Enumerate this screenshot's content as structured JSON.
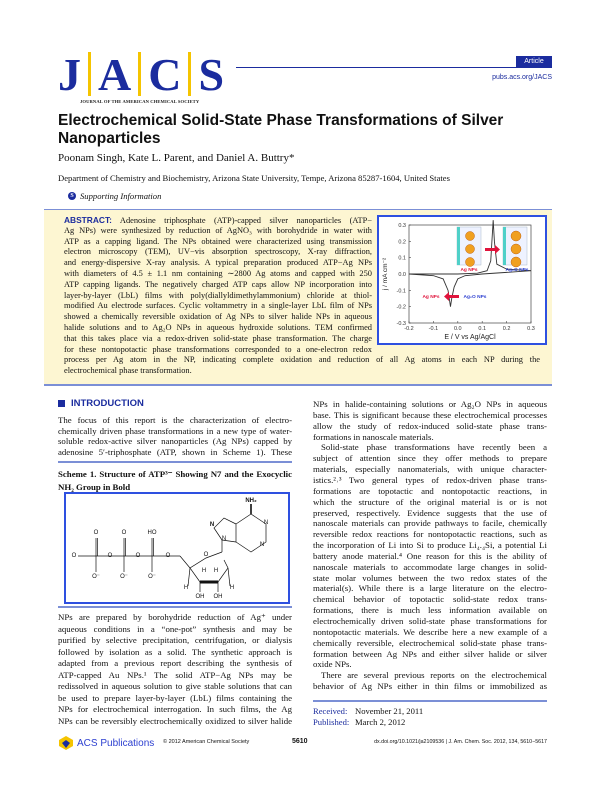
{
  "header": {
    "logo_letters": [
      "J",
      "A",
      "C",
      "S"
    ],
    "logo_subtitle": "JOURNAL OF THE AMERICAN CHEMICAL SOCIETY",
    "badge": "Article",
    "url": "pubs.acs.org/JACS",
    "colors": {
      "brand_blue": "#1b2c9e",
      "logo_yellow": "#f5c400",
      "abstract_bg": "#fdf6d2"
    }
  },
  "title": [
    "Electrochemical Solid-State Phase Transformations of Silver",
    "Nanoparticles"
  ],
  "authors": "Poonam Singh, Kate L. Parent, and Daniel A. Buttry*",
  "affiliation": "Department of Chemistry and Biochemistry, Arizona State University, Tempe, Arizona 85287-1604, United States",
  "supporting": {
    "icon": "S",
    "label": "Supporting Information"
  },
  "abstract": {
    "label": "ABSTRACT:",
    "lines": [
      " Adenosine triphosphate (ATP)-capped silver nanoparticles (ATP−",
      "Ag NPs) were synthesized by reduction of AgNO₃ with borohydride in water with",
      "ATP as a capping ligand. The NPs obtained were characterized using transmission",
      "electron microscopy (TEM), UV−vis absorption spectroscopy, X-ray diffraction,",
      "and energy-dispersive X-ray analysis. A typical preparation produced ATP−Ag NPs",
      "with diameters of 4.5 ± 1.1 nm containing ∼2800 Ag atoms and capped with 250",
      "ATP capping ligands. The negatively charged ATP caps allow NP incorporation into",
      "layer-by-layer (LbL) films with poly(diallyldimethylammonium) chloride at thiol-",
      "modified Au electrode surfaces. Cyclic voltammetry in a single-layer LbL film of NPs",
      "showed a chemically reversible oxidation of Ag NPs to silver halide NPs in aqueous",
      "halide solutions and to Ag₂O NPs in aqueous hydroxide solutions. TEM confirmed",
      "that this takes place via a redox-driven solid-state phase transformation. The charge",
      "for these nontopotactic phase transformations corresponded to a one-electron redox",
      "process per Ag atom in the NP, indicating complete oxidation and reduction of all Ag atoms in each NP during the",
      "electrochemical phase transformation."
    ]
  },
  "chart_data": {
    "type": "line",
    "xlabel": "E / V vs Ag/AgCl",
    "ylabel": "j / mA cm⁻²",
    "xlim": [
      -0.2,
      0.3
    ],
    "ylim": [
      -0.3,
      0.3
    ],
    "xticks": [
      "-0.2",
      "-0.1",
      "0.0",
      "0.1",
      "0.2",
      "0.3"
    ],
    "yticks": [
      "-0.3",
      "-0.2",
      "-0.1",
      "0.0",
      "0.1",
      "0.2",
      "0.3"
    ],
    "grid": false,
    "series": [
      {
        "x": [
          -0.2,
          -0.1,
          0.0,
          0.08,
          0.12,
          0.135,
          0.145,
          0.15,
          0.16,
          0.2,
          0.25,
          0.3
        ],
        "y": [
          0.0,
          0.0,
          0.0,
          0.005,
          0.02,
          0.08,
          0.33,
          0.2,
          0.06,
          0.03,
          0.025,
          0.02
        ]
      },
      {
        "x": [
          0.3,
          0.2,
          0.1,
          0.03,
          0.0,
          -0.015,
          -0.025,
          -0.03,
          -0.04,
          -0.06,
          -0.1,
          -0.2
        ],
        "y": [
          0.02,
          0.01,
          0.0,
          -0.01,
          -0.03,
          -0.08,
          -0.15,
          -0.2,
          -0.1,
          -0.03,
          -0.01,
          0.0
        ]
      }
    ],
    "annotations": [
      "Ag NPs",
      "Ag₂O NPs",
      "Ag NPs",
      "Ag₂O NPs"
    ],
    "colors": {
      "curve": "#333333",
      "ag_label": "#e0143c",
      "ag2o_label": "#2c3fd0",
      "arrow": "#e0143c",
      "frame": "#2e50e0"
    }
  },
  "introduction": {
    "heading": "INTRODUCTION",
    "lines": [
      "The focus of this report is the characterization of electro-",
      "chemically driven phase transformations in a new type of water-",
      "soluble redox-active silver nanoparticles (Ag NPs) capped by",
      "adenosine 5′-triphosphate (ATP, shown in Scheme 1). These"
    ],
    "lower_lines": [
      "NPs are prepared by borohydride reduction of Ag⁺ under",
      "aqueous conditions in a “one-pot” synthesis and may be",
      "purified by selective precipitation, centrifugation, or dialysis",
      "followed by isolation as a solid. The synthetic approach is",
      "adapted from a previous report describing the synthesis of",
      "ATP-capped Au NPs.¹ The solid ATP−Ag NPs may be",
      "redissolved in aqueous solution to give stable solutions that can",
      "be used to prepare layer-by-layer (LbL) films containing the",
      "NPs for electrochemical interrogation. In such films, the Ag",
      "NPs can be reversibly electrochemically oxidized to silver halide"
    ],
    "right_lines": [
      "NPs in halide-containing solutions or Ag₂O NPs in aqueous",
      "base. This is significant because these electrochemical processes",
      "allow the study of redox-induced solid-state phase trans-",
      "formations in nanoscale materials.",
      "Solid-state phase transformations have recently been a",
      "subject of attention since they offer methods to prepare",
      "materials, especially nanomaterials, with unique character-",
      "istics.²˒³ Two general types of redox-driven phase trans-",
      "formations are topotactic and nontopotactic reactions, in",
      "which the structure of the original material is or is not",
      "preserved, respectively. Evidence suggests that the use of",
      "nanoscale materials can provide pathways to facile, chemically",
      "reversible redox reactions for nontopotactic reactions, such as",
      "the incorporation of Li into Si to produce Li₄.₄Si, a potential Li",
      "battery anode material.⁴ One reason for this is the ability of",
      "nanoscale materials to accommodate large changes in solid-",
      "state molar volumes between the two redox states of the",
      "material(s). While there is a large literature on the electro-",
      "chemical behavior of topotactic solid-state redox trans-",
      "formations, there is much less information available on",
      "electrochemically driven solid-state phase transformations for",
      "nontopotactic materials. We describe here a new example of a",
      "chemically reversible, electrochemical solid-state phase trans-",
      "formation between Ag NPs and either silver halide or silver",
      "oxide NPs.",
      "There are several previous reports on the electrochemical",
      "behavior of Ag NPs either in thin films or immobilized as"
    ]
  },
  "scheme": {
    "caption_label": "Scheme 1.",
    "caption_lines": [
      " Structure of ATP³⁻ Showing N7 and the Exocyclic",
      "NH₂ Group in Bold"
    ],
    "atoms": [
      "NH₂",
      "N",
      "N",
      "N",
      "N",
      "O",
      "O",
      "O",
      "HO",
      "O",
      "O",
      "O",
      "O⁻",
      "O⁻",
      "O⁻",
      "O",
      "H",
      "H",
      "H",
      "H",
      "OH",
      "OH"
    ]
  },
  "dates": {
    "received_label": "Received:",
    "received": "November 21, 2011",
    "published_label": "Published:",
    "published": "March 2, 2012"
  },
  "footer": {
    "publisher": "ACS Publications",
    "copyright": "© 2012 American Chemical Society",
    "page": "5610",
    "citation": "dx.doi.org/10.1021/ja2109536 | J. Am. Chem. Soc. 2012, 134, 5610−5617"
  }
}
